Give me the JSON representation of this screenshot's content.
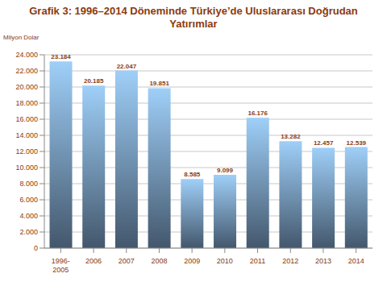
{
  "chart_data": {
    "type": "bar",
    "title": "Grafik 3: 1996–2014 Döneminde Türkiye’de Uluslararası Doğrudan Yatırımlar",
    "ylabel": "Milyon Dolar",
    "categories": [
      "1996-2005",
      "2006",
      "2007",
      "2008",
      "2009",
      "2010",
      "2011",
      "2012",
      "2013",
      "2014"
    ],
    "values": [
      23184,
      20185,
      22047,
      19851,
      8585,
      9099,
      16176,
      13282,
      12457,
      12539
    ],
    "value_labels": [
      "23.184",
      "20.185",
      "22.047",
      "19.851",
      "8.585",
      "9.099",
      "16.176",
      "13.282",
      "12.457",
      "12.539"
    ],
    "color": "#9fcff8",
    "ylim": [
      0,
      24000
    ],
    "yticks": [
      0,
      {
        "value": 2000,
        "label": "2.000"
      },
      {
        "value": 4000,
        "label": "4.000"
      },
      {
        "value": 6000,
        "label": "6.000"
      },
      {
        "value": 8000,
        "label": "8.000"
      },
      {
        "value": 10000,
        "label": "10.000"
      },
      {
        "value": 12000,
        "label": "12.000"
      },
      {
        "value": 14000,
        "label": "14.000"
      },
      {
        "value": 16000,
        "label": "16.000"
      },
      {
        "value": 18000,
        "label": "18.000"
      },
      {
        "value": 20000,
        "label": "20.000"
      },
      {
        "value": 22000,
        "label": "22.000"
      },
      {
        "value": 24000,
        "label": "24.000"
      }
    ],
    "grid": true,
    "data_labels": true
  }
}
